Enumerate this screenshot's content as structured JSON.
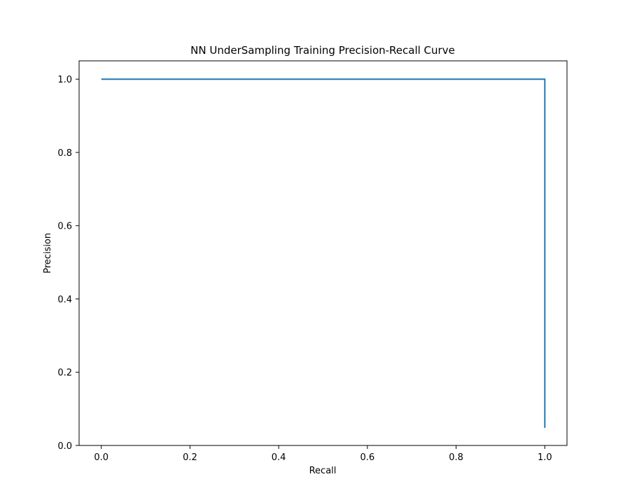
{
  "chart_data": {
    "type": "line",
    "title": "NN UnderSampling Training Precision-Recall Curve",
    "xlabel": "Recall",
    "ylabel": "Precision",
    "xlim": [
      -0.05,
      1.05
    ],
    "ylim": [
      0.0,
      1.05
    ],
    "xticks": [
      0.0,
      0.2,
      0.4,
      0.6,
      0.8,
      1.0
    ],
    "yticks": [
      0.0,
      0.2,
      0.4,
      0.6,
      0.8,
      1.0
    ],
    "xtick_labels": [
      "0.0",
      "0.2",
      "0.4",
      "0.6",
      "0.8",
      "1.0"
    ],
    "ytick_labels": [
      "0.0",
      "0.2",
      "0.4",
      "0.6",
      "0.8",
      "1.0"
    ],
    "grid": false,
    "series": [
      {
        "color": "#1f77b4",
        "x": [
          0.0,
          1.0,
          1.0
        ],
        "y": [
          1.0,
          1.0,
          0.048
        ]
      }
    ]
  }
}
